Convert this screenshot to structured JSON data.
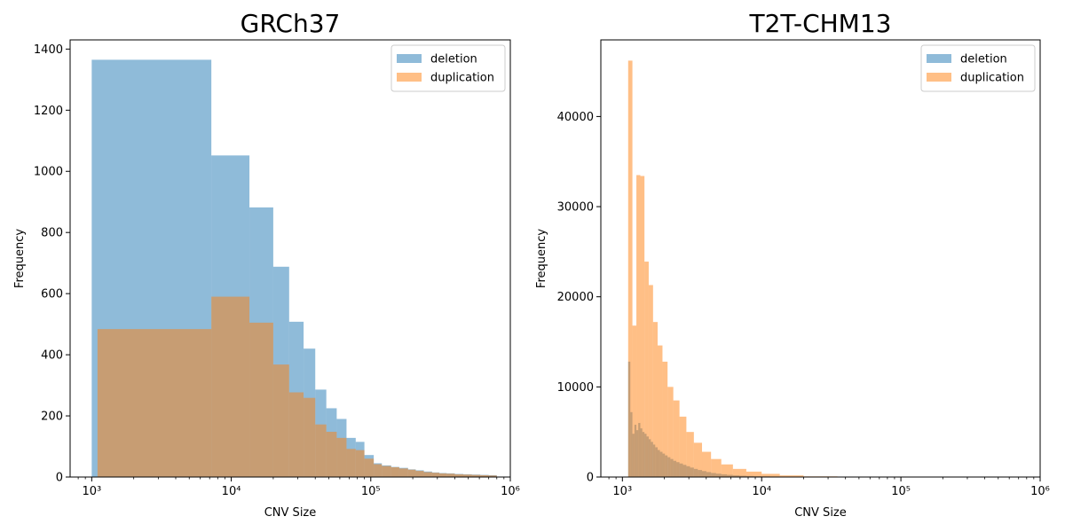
{
  "colors": {
    "deletion": "#1f77b4",
    "duplication": "#ff7f0e",
    "bar_opacity": 0.5
  },
  "chart_data": [
    {
      "type": "bar",
      "title": "GRCh37",
      "xlabel": "CNV Size",
      "ylabel": "Frequency",
      "x_scale": "log",
      "xlim": [
        700,
        1000000
      ],
      "ylim": [
        0,
        1430
      ],
      "x_ticks": [
        1000,
        10000,
        100000,
        1000000
      ],
      "x_tick_labels": [
        "10³",
        "10⁴",
        "10⁵",
        "10⁶"
      ],
      "y_ticks": [
        0,
        200,
        400,
        600,
        800,
        1000,
        1200,
        1400
      ],
      "legend": {
        "placement": "top-right",
        "entries": [
          "deletion",
          "duplication"
        ]
      },
      "grid": false,
      "series": [
        {
          "name": "deletion",
          "bins": [
            [
              1000,
              7200,
              1365
            ],
            [
              7200,
              13500,
              1052
            ],
            [
              13500,
              20000,
              882
            ],
            [
              20000,
              26000,
              688
            ],
            [
              26000,
              33000,
              508
            ],
            [
              33000,
              40000,
              420
            ],
            [
              40000,
              48000,
              286
            ],
            [
              48000,
              57000,
              225
            ],
            [
              57000,
              67000,
              190
            ],
            [
              67000,
              78000,
              128
            ],
            [
              78000,
              90000,
              115
            ],
            [
              90000,
              105000,
              72
            ],
            [
              105000,
              120000,
              45
            ],
            [
              120000,
              140000,
              38
            ],
            [
              140000,
              160000,
              33
            ],
            [
              160000,
              185000,
              30
            ],
            [
              185000,
              210000,
              25
            ],
            [
              210000,
              240000,
              22
            ],
            [
              240000,
              275000,
              18
            ],
            [
              275000,
              310000,
              15
            ],
            [
              310000,
              350000,
              13
            ],
            [
              350000,
              400000,
              12
            ],
            [
              400000,
              460000,
              10
            ],
            [
              460000,
              530000,
              9
            ],
            [
              530000,
              610000,
              8
            ],
            [
              610000,
              700000,
              7
            ],
            [
              700000,
              800000,
              6
            ]
          ]
        },
        {
          "name": "duplication",
          "bins": [
            [
              1100,
              7200,
              484
            ],
            [
              7200,
              13500,
              590
            ],
            [
              13500,
              20000,
              505
            ],
            [
              20000,
              26000,
              368
            ],
            [
              26000,
              33000,
              277
            ],
            [
              33000,
              40000,
              259
            ],
            [
              40000,
              48000,
              172
            ],
            [
              48000,
              57000,
              148
            ],
            [
              57000,
              67000,
              128
            ],
            [
              67000,
              78000,
              92
            ],
            [
              78000,
              90000,
              88
            ],
            [
              90000,
              105000,
              60
            ],
            [
              105000,
              120000,
              42
            ],
            [
              120000,
              140000,
              36
            ],
            [
              140000,
              160000,
              32
            ],
            [
              160000,
              185000,
              28
            ],
            [
              185000,
              210000,
              24
            ],
            [
              210000,
              240000,
              20
            ],
            [
              240000,
              275000,
              16
            ],
            [
              275000,
              310000,
              14
            ],
            [
              310000,
              350000,
              12
            ],
            [
              350000,
              400000,
              11
            ],
            [
              400000,
              460000,
              9
            ],
            [
              460000,
              530000,
              8
            ],
            [
              530000,
              610000,
              7
            ],
            [
              610000,
              700000,
              6
            ],
            [
              700000,
              800000,
              5
            ]
          ]
        }
      ]
    },
    {
      "type": "bar",
      "title": "T2T-CHM13",
      "xlabel": "CNV Size",
      "ylabel": "Frequency",
      "x_scale": "log",
      "xlim": [
        700,
        1000000
      ],
      "ylim": [
        0,
        48500
      ],
      "x_ticks": [
        1000,
        10000,
        100000,
        1000000
      ],
      "x_tick_labels": [
        "10³",
        "10⁴",
        "10⁵",
        "10⁶"
      ],
      "y_ticks": [
        0,
        10000,
        20000,
        30000,
        40000
      ],
      "legend": {
        "placement": "top-right",
        "entries": [
          "deletion",
          "duplication"
        ]
      },
      "grid": false,
      "series": [
        {
          "name": "deletion",
          "bins": [
            [
              1100,
              1140,
              12800
            ],
            [
              1140,
              1180,
              7200
            ],
            [
              1180,
              1220,
              4800
            ],
            [
              1220,
              1260,
              5800
            ],
            [
              1260,
              1300,
              5200
            ],
            [
              1300,
              1345,
              6000
            ],
            [
              1345,
              1390,
              5400
            ],
            [
              1390,
              1440,
              5000
            ],
            [
              1440,
              1490,
              4800
            ],
            [
              1490,
              1545,
              4500
            ],
            [
              1545,
              1600,
              4200
            ],
            [
              1600,
              1660,
              3900
            ],
            [
              1660,
              1720,
              3600
            ],
            [
              1720,
              1790,
              3300
            ],
            [
              1790,
              1860,
              3000
            ],
            [
              1860,
              1940,
              2800
            ],
            [
              1940,
              2020,
              2600
            ],
            [
              2020,
              2110,
              2400
            ],
            [
              2110,
              2210,
              2200
            ],
            [
              2210,
              2320,
              2000
            ],
            [
              2320,
              2440,
              1800
            ],
            [
              2440,
              2570,
              1650
            ],
            [
              2570,
              2720,
              1500
            ],
            [
              2720,
              2880,
              1350
            ],
            [
              2880,
              3060,
              1200
            ],
            [
              3060,
              3260,
              1050
            ],
            [
              3260,
              3480,
              900
            ],
            [
              3480,
              3730,
              780
            ],
            [
              3730,
              4010,
              660
            ],
            [
              4010,
              4330,
              550
            ],
            [
              4330,
              4700,
              450
            ],
            [
              4700,
              5130,
              370
            ],
            [
              5130,
              5630,
              300
            ],
            [
              5630,
              6220,
              240
            ],
            [
              6220,
              6920,
              190
            ],
            [
              6920,
              7760,
              150
            ],
            [
              7760,
              8780,
              120
            ],
            [
              8780,
              10000,
              90
            ],
            [
              10000,
              11500,
              70
            ],
            [
              11500,
              13500,
              55
            ],
            [
              13500,
              16000,
              40
            ],
            [
              16000,
              20000,
              30
            ],
            [
              20000,
              26000,
              20
            ]
          ]
        },
        {
          "name": "duplication",
          "bins": [
            [
              1100,
              1180,
              46200
            ],
            [
              1180,
              1260,
              16800
            ],
            [
              1260,
              1345,
              33500
            ],
            [
              1345,
              1440,
              33400
            ],
            [
              1440,
              1545,
              23900
            ],
            [
              1545,
              1660,
              21300
            ],
            [
              1660,
              1790,
              17200
            ],
            [
              1790,
              1940,
              14600
            ],
            [
              1940,
              2110,
              12800
            ],
            [
              2110,
              2320,
              10000
            ],
            [
              2320,
              2570,
              8500
            ],
            [
              2570,
              2880,
              6700
            ],
            [
              2880,
              3260,
              5000
            ],
            [
              3260,
              3730,
              3800
            ],
            [
              3730,
              4330,
              2800
            ],
            [
              4330,
              5130,
              2000
            ],
            [
              5130,
              6220,
              1400
            ],
            [
              6220,
              7760,
              900
            ],
            [
              7760,
              10000,
              600
            ],
            [
              10000,
              13500,
              350
            ],
            [
              13500,
              20000,
              180
            ],
            [
              20000,
              35000,
              70
            ],
            [
              35000,
              80000,
              20
            ]
          ]
        }
      ]
    }
  ]
}
